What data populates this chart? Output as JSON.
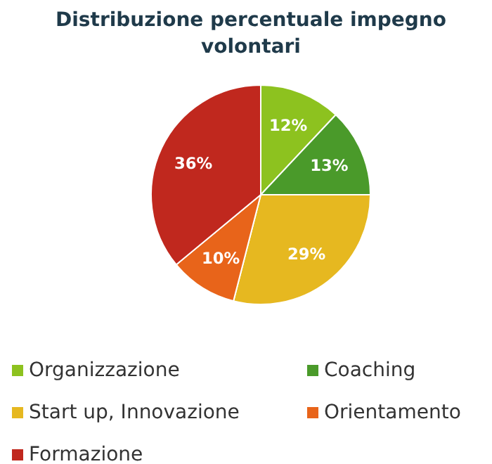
{
  "chart_data": {
    "type": "pie",
    "title": "Distribuzione percentuale impegno volontari",
    "categories": [
      "Organizzazione",
      "Coaching",
      "Start up, Innovazione",
      "Orientamento",
      "Formazione"
    ],
    "values": [
      12,
      13,
      29,
      10,
      36
    ],
    "colors": [
      "#8dc21f",
      "#4a9a2a",
      "#e6b820",
      "#e8641a",
      "#c0281e"
    ],
    "value_labels": [
      "12%",
      "13%",
      "29%",
      "10%",
      "36%"
    ],
    "legend": "bottom"
  }
}
